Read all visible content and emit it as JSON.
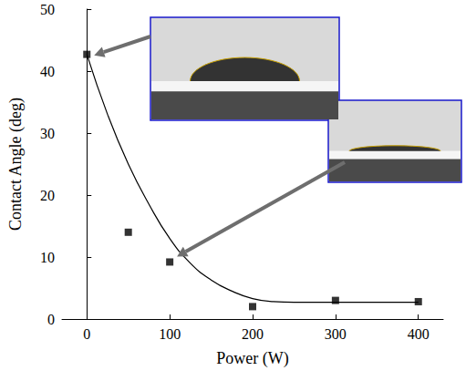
{
  "chart_data": {
    "type": "scatter",
    "x_label": "Power (W)",
    "y_label": "Contact Angle (deg)",
    "xlim": [
      -30,
      430
    ],
    "xticks": [
      0,
      100,
      200,
      300,
      400
    ],
    "ylim": [
      0,
      50
    ],
    "yticks": [
      0,
      10,
      20,
      30,
      40,
      50
    ],
    "grid": false,
    "series": [
      {
        "type": "scatter",
        "color": "#000000",
        "marker": "square",
        "x": [
          0,
          50,
          100,
          200,
          300,
          400
        ],
        "values": [
          42.7,
          14,
          9.2,
          2,
          3,
          2.8
        ]
      },
      {
        "type": "line",
        "color": "#000000",
        "line_style": "solid",
        "x": [
          0,
          25,
          50,
          75,
          100,
          125,
          150,
          175,
          200,
          225,
          250,
          300,
          350,
          400
        ],
        "values": [
          42.7,
          33,
          25,
          18.5,
          13,
          9,
          6.3,
          4.5,
          3.3,
          2.8,
          2.7,
          2.7,
          2.7,
          2.7
        ]
      }
    ]
  }
}
